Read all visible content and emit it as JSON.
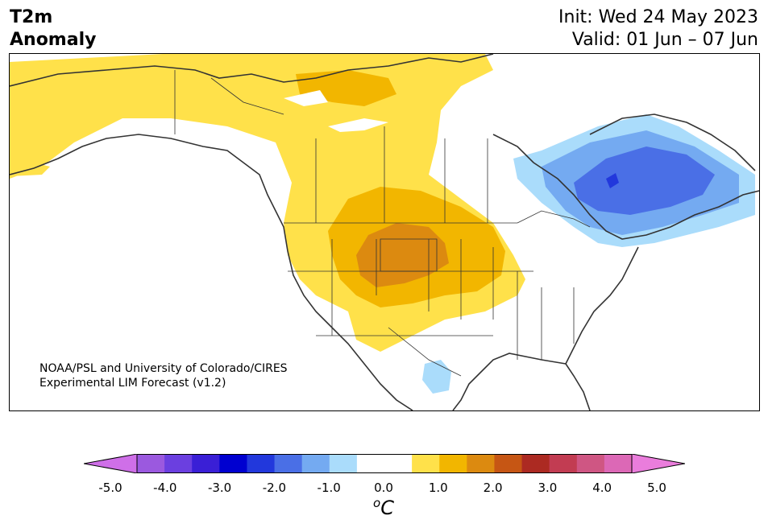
{
  "title": {
    "variable": "T2m",
    "type": "Anomaly",
    "init": "Init: Wed 24 May 2023",
    "valid": "Valid: 01 Jun – 07 Jun"
  },
  "credit": {
    "line1": "NOAA/PSL and University of Colorado/CIRES",
    "line2": "Experimental LIM Forecast (v1.2)"
  },
  "colorbar": {
    "colors": [
      "#cf6fe8",
      "#9b59df",
      "#6b3fe0",
      "#3a1fd6",
      "#0000d0",
      "#2238dc",
      "#4a6fe6",
      "#74aaf1",
      "#aadcfb",
      "#ffffff",
      "#ffffff",
      "#ffe14a",
      "#f2b600",
      "#dc8a10",
      "#c65614",
      "#ac2a22",
      "#c23c52",
      "#cf5683",
      "#dc68b6",
      "#ea7ddc"
    ],
    "ticks": [
      "-5.0",
      "-4.0",
      "-3.0",
      "-2.0",
      "-1.0",
      "0.0",
      "1.0",
      "2.0",
      "3.0",
      "4.0",
      "5.0"
    ],
    "unit_sup": "o",
    "unit": "C"
  }
}
